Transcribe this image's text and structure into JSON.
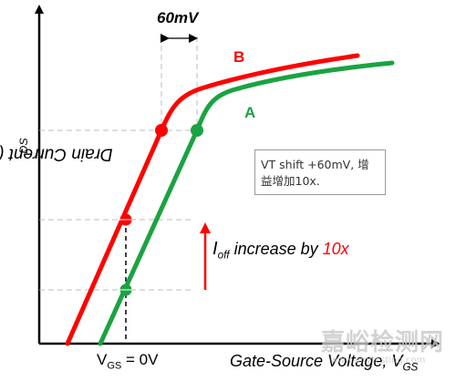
{
  "title": "",
  "y_axis": {
    "label": "Drain Current (Log scale), I",
    "label_sub": "DS"
  },
  "x_axis": {
    "label": "Gate-Source Voltage, V",
    "label_sub": "GS"
  },
  "vgs_zero": {
    "prefix": "V",
    "sub": "GS",
    "suffix": " = 0V"
  },
  "shift_label": "60mV",
  "curves": [
    {
      "name": "B",
      "color": "#ff0000"
    },
    {
      "name": "A",
      "color": "#1aa341"
    }
  ],
  "ioff": {
    "prefix": "I",
    "sub": "off",
    "text": " increase by ",
    "factor": "10x",
    "arrow_color": "#ff0000"
  },
  "note": "VT shift +60mV, 增益增加10x.",
  "watermark": {
    "main": "嘉峪检测网",
    "sub": "www.anytesting.com"
  }
}
